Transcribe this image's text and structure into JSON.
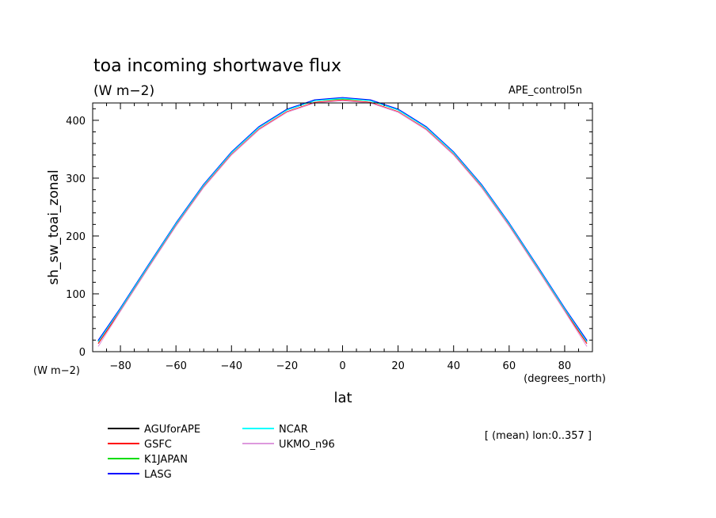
{
  "chart_data": {
    "type": "line",
    "title": "toa incoming shortwave flux",
    "subtitle": "(W m−2)",
    "experiment": "APE_control5n",
    "xlabel": "lat",
    "x_unit": "(degrees_north)",
    "ylabel": "sh_sw_toai_zonal",
    "y_unit": "(W m−2)",
    "footnote": "[ (mean) lon:0..357 ]",
    "xlim": [
      -90,
      90
    ],
    "ylim": [
      0,
      430
    ],
    "x_ticks": [
      -80,
      -60,
      -40,
      -20,
      0,
      20,
      40,
      60,
      80
    ],
    "x_tick_labels": [
      "−80",
      "−60",
      "−40",
      "−20",
      "0",
      "20",
      "40",
      "60",
      "80"
    ],
    "y_ticks": [
      0,
      100,
      200,
      300,
      400
    ],
    "y_tick_labels": [
      "0",
      "100",
      "200",
      "300",
      "400"
    ],
    "grid": false,
    "legend_position": "bottom-left",
    "lat": [
      -88,
      -80,
      -70,
      -60,
      -50,
      -40,
      -30,
      -20,
      -10,
      0,
      10,
      20,
      30,
      40,
      50,
      60,
      70,
      80,
      88
    ],
    "series": [
      {
        "name": "AGUforAPE",
        "color": "#000000",
        "values": [
          18,
          74,
          148,
          221,
          288,
          344,
          388,
          418,
          434,
          438,
          434,
          418,
          388,
          344,
          288,
          221,
          148,
          74,
          18
        ]
      },
      {
        "name": "GSFC",
        "color": "#ff0000",
        "values": [
          14,
          71,
          145,
          218,
          285,
          341,
          385,
          415,
          431,
          435,
          431,
          415,
          385,
          341,
          285,
          218,
          145,
          71,
          14
        ]
      },
      {
        "name": "K1JAPAN",
        "color": "#00dd00",
        "values": [
          17,
          74,
          148,
          221,
          288,
          344,
          388,
          418,
          434,
          437,
          434,
          418,
          388,
          344,
          288,
          221,
          148,
          74,
          17
        ]
      },
      {
        "name": "LASG",
        "color": "#0000ff",
        "values": [
          19,
          75,
          149,
          222,
          289,
          345,
          389,
          419,
          435,
          439,
          435,
          419,
          389,
          345,
          289,
          222,
          149,
          75,
          19
        ]
      },
      {
        "name": "NCAR",
        "color": "#00ffff",
        "values": [
          17,
          74,
          148,
          221,
          288,
          344,
          388,
          418,
          434,
          438,
          434,
          418,
          388,
          344,
          288,
          221,
          148,
          74,
          17
        ]
      },
      {
        "name": "UKMO_n96",
        "color": "#dd99dd",
        "values": [
          9,
          70,
          144,
          217,
          284,
          340,
          384,
          414,
          430,
          434,
          430,
          414,
          384,
          340,
          284,
          217,
          144,
          70,
          9
        ]
      }
    ]
  }
}
